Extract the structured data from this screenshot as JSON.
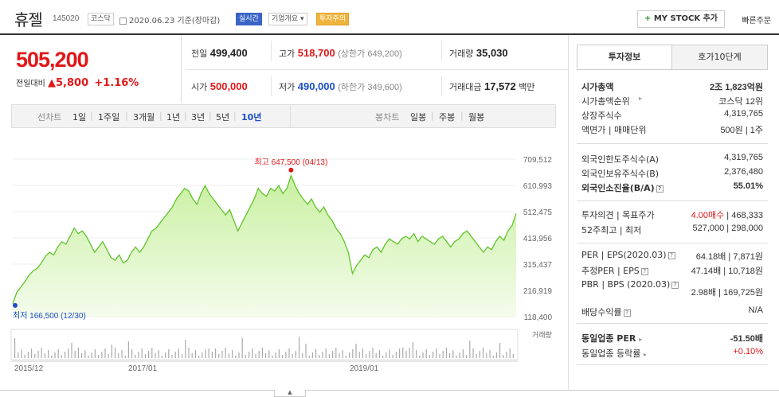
{
  "header": {
    "name": "휴젤",
    "code": "145020",
    "market": "코스닥",
    "date": "2020.06.23 기준(장마감)",
    "realtime": "실시간",
    "overview": "기업개요",
    "caution": "투자주의",
    "mystock": "MY STOCK 추가",
    "mystock_plus": "+",
    "fast_order": "빠른주문"
  },
  "quote": {
    "price": "505,200",
    "change_label": "전일대비",
    "change_arrow": "▲",
    "change_value": "5,800",
    "change_pct": "+1.16%"
  },
  "summary": {
    "prev_label": "전일",
    "prev": "499,400",
    "high_label": "고가",
    "high": "518,700",
    "high_sub": "(상한가 649,200)",
    "vol_label": "거래량",
    "vol": "35,030",
    "open_label": "시가",
    "open": "500,000",
    "low_label": "저가",
    "low": "490,000",
    "low_sub": "(하한가 349,600)",
    "amt_label": "거래대금",
    "amt": "17,572",
    "amt_unit": "백만"
  },
  "chart_tabs": {
    "line_label": "선차트",
    "periods": [
      "1일",
      "1주일",
      "3개월",
      "1년",
      "3년",
      "5년",
      "10년"
    ],
    "selected": "10년",
    "candle_label": "봉차트",
    "candles": [
      "일봉",
      "주봉",
      "월봉"
    ]
  },
  "chart_data": {
    "type": "area",
    "y_ticks": [
      "709,512",
      "610,993",
      "512,475",
      "413,956",
      "315,437",
      "216,919",
      "118,400"
    ],
    "ylim": [
      118400,
      709512
    ],
    "x_ticks": [
      "2015/12",
      "2017/01",
      "2019/01"
    ],
    "max_annotation": "최고 647,500 (04/13)",
    "min_annotation": "최저 166,500 (12/30)",
    "volume_label": "거래량",
    "colors": {
      "line": "#5fc42a",
      "fill_top": "#c8f0a0",
      "fill_bottom": "#f4fcec",
      "max": "#e01818",
      "min": "#1a4fc4"
    },
    "values": [
      166500,
      210000,
      230000,
      250000,
      275000,
      290000,
      300000,
      320000,
      345000,
      360000,
      350000,
      380000,
      400000,
      390000,
      420000,
      450000,
      430000,
      440000,
      420000,
      390000,
      360000,
      380000,
      400000,
      370000,
      340000,
      330000,
      350000,
      320000,
      330000,
      360000,
      380000,
      360000,
      380000,
      410000,
      440000,
      450000,
      470000,
      490000,
      510000,
      530000,
      560000,
      580000,
      600000,
      590000,
      560000,
      540000,
      580000,
      610000,
      580000,
      560000,
      540000,
      520000,
      500000,
      520000,
      480000,
      440000,
      470000,
      500000,
      530000,
      560000,
      600000,
      580000,
      570000,
      600000,
      590000,
      610000,
      580000,
      600000,
      647500,
      610000,
      580000,
      560000,
      540000,
      560000,
      530000,
      510000,
      530000,
      500000,
      480000,
      450000,
      430000,
      400000,
      360000,
      280000,
      310000,
      330000,
      350000,
      340000,
      370000,
      380000,
      360000,
      390000,
      410000,
      400000,
      390000,
      410000,
      420000,
      410000,
      430000,
      400000,
      420000,
      410000,
      400000,
      390000,
      410000,
      420000,
      400000,
      380000,
      400000,
      410000,
      430000,
      440000,
      420000,
      400000,
      380000,
      360000,
      380000,
      370000,
      400000,
      420000,
      405000,
      440000,
      460000,
      505200
    ]
  },
  "right_panel": {
    "tab1": "투자정보",
    "tab2": "호가10단계",
    "rows1": [
      {
        "k": "시가총액",
        "v": "2조 1,823억원",
        "bold": true
      },
      {
        "k": "시가총액순위",
        "v": "코스닥 12위"
      },
      {
        "k": "상장주식수",
        "v": "4,319,765"
      },
      {
        "k": "액면가 | 매매단위",
        "v": "500원 | 1주"
      }
    ],
    "rows2": [
      {
        "k": "외국인한도주식수(A)",
        "v": "4,319,765"
      },
      {
        "k": "외국인보유주식수(B)",
        "v": "2,376,480"
      },
      {
        "k": "외국인소진율(B/A)",
        "v": "55.01%",
        "bold": true
      }
    ],
    "opinion_k": "투자의견 | 목표주가",
    "opinion_v1": "4.00매수",
    "opinion_v2": "468,333",
    "w52_k": "52주최고 | 최저",
    "w52_v1": "527,000",
    "w52_v2": "298,000",
    "per_k": "PER | EPS(2020.03)",
    "per_v1": "64.18배",
    "per_v2": "7,871원",
    "eper_k": "추정PER | EPS",
    "eper_v1": "47.14배",
    "eper_v2": "10,718원",
    "pbr_k": "PBR | BPS (2020.03)",
    "pbr_v1": "2.98배",
    "pbr_v2": "169,725원",
    "div_k": "배당수익률",
    "div_v": "N/A",
    "ind_per_k": "동일업종 PER",
    "ind_per_v": "-51.50배",
    "ind_rate_k": "동일업종 등락률",
    "ind_rate_v": "+0.10%"
  }
}
